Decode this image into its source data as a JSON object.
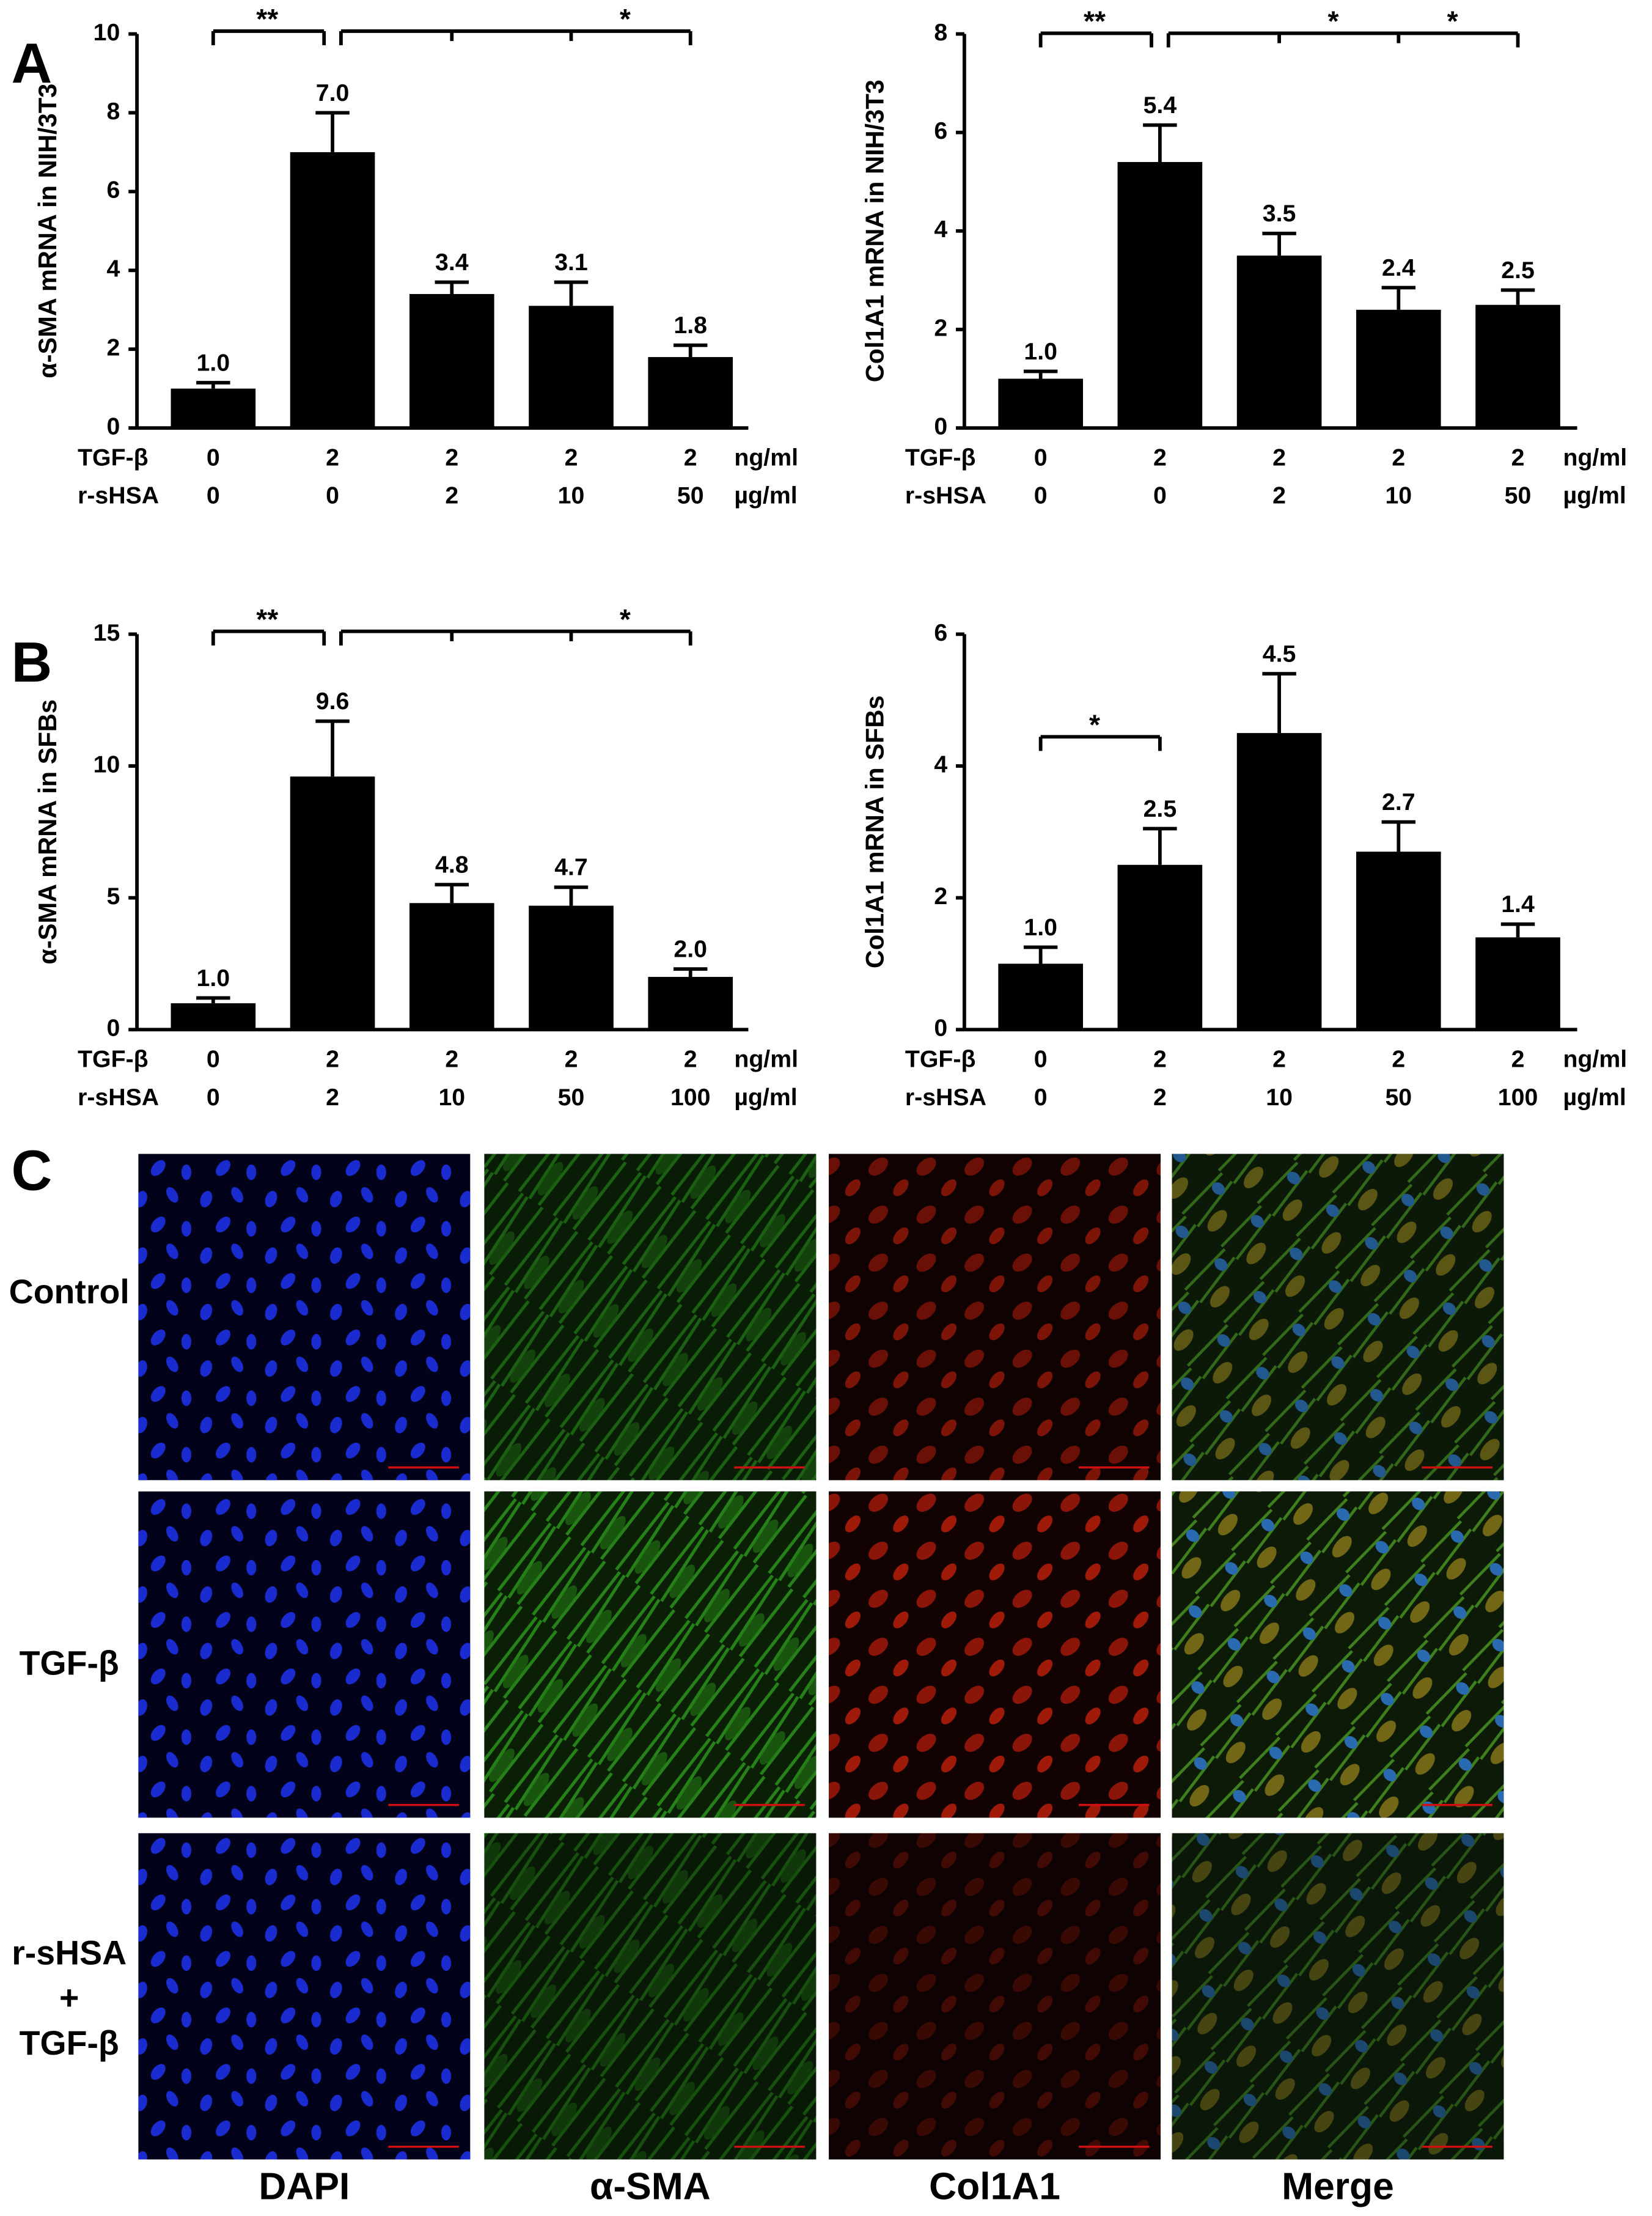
{
  "panels": [
    "A",
    "B",
    "C"
  ],
  "chart_data": [
    {
      "type": "bar",
      "ylabel": "α-SMA mRNA in NIH/3T3",
      "color": "#000000",
      "ylim": [
        0,
        10
      ],
      "yticks": [
        0,
        2,
        4,
        6,
        8,
        10
      ],
      "values": [
        1.0,
        7.0,
        3.4,
        3.1,
        1.8
      ],
      "value_labels": [
        "1.0",
        "7.0",
        "3.4",
        "3.1",
        "1.8"
      ],
      "errors": [
        0.15,
        1.0,
        0.3,
        0.6,
        0.3
      ],
      "condition_rows": [
        {
          "name": "TGF-β",
          "levels": [
            "0",
            "2",
            "2",
            "2",
            "2"
          ],
          "unit": "ng/ml"
        },
        {
          "name": "r-sHSA",
          "levels": [
            "0",
            "0",
            "2",
            "10",
            "50"
          ],
          "unit": "µg/ml"
        }
      ],
      "significance": [
        {
          "span": [
            0,
            1
          ],
          "marks": [
            {
              "between": [
                0,
                1
              ],
              "text": "**"
            }
          ]
        },
        {
          "span": [
            1,
            4
          ],
          "marks": [
            {
              "between": [
                3,
                4
              ],
              "text": "*"
            }
          ]
        }
      ]
    },
    {
      "type": "bar",
      "ylabel": "Col1A1 mRNA in NIH/3T3",
      "color": "#000000",
      "ylim": [
        0,
        8
      ],
      "yticks": [
        0,
        2,
        4,
        6,
        8
      ],
      "values": [
        1.0,
        5.4,
        3.5,
        2.4,
        2.5
      ],
      "value_labels": [
        "1.0",
        "5.4",
        "3.5",
        "2.4",
        "2.5"
      ],
      "errors": [
        0.15,
        0.75,
        0.45,
        0.45,
        0.3
      ],
      "condition_rows": [
        {
          "name": "TGF-β",
          "levels": [
            "0",
            "2",
            "2",
            "2",
            "2"
          ],
          "unit": "ng/ml"
        },
        {
          "name": "r-sHSA",
          "levels": [
            "0",
            "0",
            "2",
            "10",
            "50"
          ],
          "unit": "µg/ml"
        }
      ],
      "significance": [
        {
          "span": [
            0,
            1
          ],
          "marks": [
            {
              "between": [
                0,
                1
              ],
              "text": "**"
            }
          ]
        },
        {
          "span": [
            1,
            4
          ],
          "marks": [
            {
              "between": [
                2,
                3
              ],
              "text": "*"
            },
            {
              "between": [
                3,
                4
              ],
              "text": "*"
            }
          ]
        }
      ]
    },
    {
      "type": "bar",
      "ylabel": "α-SMA mRNA in SFBs",
      "color": "#000000",
      "ylim": [
        0,
        15
      ],
      "yticks": [
        0,
        5,
        10,
        15
      ],
      "values": [
        1.0,
        9.6,
        4.8,
        4.7,
        2.0
      ],
      "value_labels": [
        "1.0",
        "9.6",
        "4.8",
        "4.7",
        "2.0"
      ],
      "errors": [
        0.2,
        2.1,
        0.7,
        0.7,
        0.3
      ],
      "condition_rows": [
        {
          "name": "TGF-β",
          "levels": [
            "0",
            "2",
            "2",
            "2",
            "2"
          ],
          "unit": "ng/ml"
        },
        {
          "name": "r-sHSA",
          "levels": [
            "0",
            "2",
            "10",
            "50",
            "100"
          ],
          "unit": "µg/ml"
        }
      ],
      "significance": [
        {
          "span": [
            0,
            1
          ],
          "marks": [
            {
              "between": [
                0,
                1
              ],
              "text": "**"
            }
          ]
        },
        {
          "span": [
            1,
            4
          ],
          "marks": [
            {
              "between": [
                3,
                4
              ],
              "text": "*"
            }
          ]
        }
      ]
    },
    {
      "type": "bar",
      "ylabel": "Col1A1 mRNA in SFBs",
      "color": "#000000",
      "ylim": [
        0,
        6
      ],
      "yticks": [
        0,
        2,
        4,
        6
      ],
      "values": [
        1.0,
        2.5,
        4.5,
        2.7,
        1.4
      ],
      "value_labels": [
        "1.0",
        "2.5",
        "4.5",
        "2.7",
        "1.4"
      ],
      "errors": [
        0.25,
        0.55,
        0.9,
        0.45,
        0.2
      ],
      "condition_rows": [
        {
          "name": "TGF-β",
          "levels": [
            "0",
            "2",
            "2",
            "2",
            "2"
          ],
          "unit": "ng/ml"
        },
        {
          "name": "r-sHSA",
          "levels": [
            "0",
            "2",
            "10",
            "50",
            "100"
          ],
          "unit": "µg/ml"
        }
      ],
      "significance": [
        {
          "span": [
            0,
            1
          ],
          "marks": [
            {
              "between": [
                0,
                1
              ],
              "text": "*"
            }
          ]
        }
      ]
    }
  ],
  "micrographs": {
    "columns": [
      "DAPI",
      "α-SMA",
      "Col1A1",
      "Merge"
    ],
    "rows": [
      [
        "Control"
      ],
      [
        "TGF-β"
      ],
      [
        "r-sHSA",
        "+",
        "TGF-β"
      ]
    ]
  }
}
